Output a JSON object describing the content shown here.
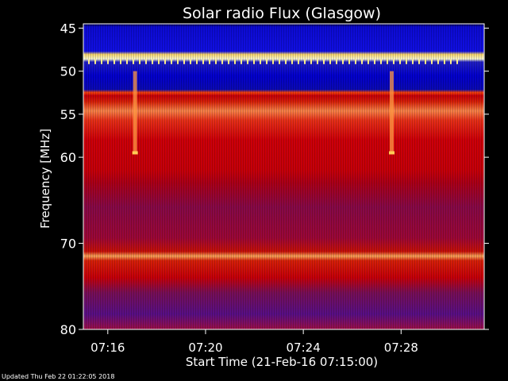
{
  "chart_data": {
    "type": "heatmap",
    "title": "Solar radio Flux (Glasgow)",
    "ylabel": "Frequency [MHz]",
    "xlabel": "Start Time (21-Feb-16 07:15:00)",
    "y_range_mhz": [
      44.5,
      80
    ],
    "y_tick_values": [
      45,
      50,
      55,
      60,
      70,
      80
    ],
    "y_tick_labels": [
      "45",
      "50",
      "55",
      "60",
      "70",
      "80"
    ],
    "x_range_min": [
      0,
      16.4
    ],
    "x_tick_values": [
      1,
      5,
      9,
      13
    ],
    "x_tick_labels": [
      "07:16",
      "07:20",
      "07:24",
      "07:28"
    ],
    "bands": [
      {
        "from": 44.5,
        "to": 48.5,
        "intensity": "blue"
      },
      {
        "from": 48.5,
        "to": 49.0,
        "intensity": "hot"
      },
      {
        "from": 49.0,
        "to": 52.5,
        "intensity": "blue"
      },
      {
        "from": 52.5,
        "to": 54.0,
        "intensity": "red"
      },
      {
        "from": 54.0,
        "to": 56.0,
        "intensity": "orange"
      },
      {
        "from": 56.0,
        "to": 62.0,
        "intensity": "red"
      },
      {
        "from": 62.0,
        "to": 71.0,
        "intensity": "red-blue mix"
      },
      {
        "from": 71.0,
        "to": 72.0,
        "intensity": "orange"
      },
      {
        "from": 72.0,
        "to": 75.0,
        "intensity": "red"
      },
      {
        "from": 75.0,
        "to": 80.0,
        "intensity": "blue-red mix"
      }
    ],
    "bursts_min": [
      2.1,
      12.6
    ],
    "grid": false,
    "colors": {
      "background": "#000000",
      "low": "#0000cc",
      "mid": "#dd0000",
      "high": "#ffaa33",
      "peak": "#ffff99"
    }
  },
  "footer": "Updated Thu Feb 22 01:22:05 2018"
}
